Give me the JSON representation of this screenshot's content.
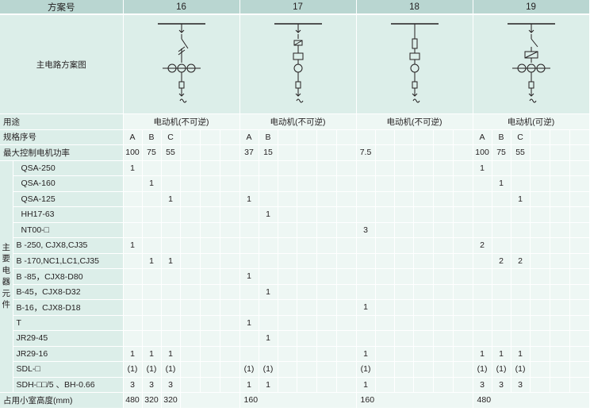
{
  "header": {
    "label": "方案号",
    "schemes": [
      "16",
      "17",
      "18",
      "19"
    ]
  },
  "diagram_row": {
    "label": "主电路方案图"
  },
  "purpose": {
    "label": "用途",
    "values": [
      "电动机(不可逆)",
      "电动机(不可逆)",
      "电动机(不可逆)",
      "电动机(可逆)"
    ]
  },
  "spec": {
    "label": "规格序号",
    "values": [
      "A",
      "B",
      "C",
      "",
      "",
      "",
      "A",
      "B",
      "",
      "",
      "",
      "",
      "",
      "",
      "",
      "",
      "",
      "",
      "A",
      "B",
      "C",
      "",
      "",
      ""
    ]
  },
  "power": {
    "label": "最大控制电机功率",
    "values": [
      "100",
      "75",
      "55",
      "",
      "",
      "",
      "37",
      "15",
      "",
      "",
      "",
      "",
      "7.5",
      "",
      "",
      "",
      "",
      "",
      "100",
      "75",
      "55",
      "",
      "",
      ""
    ]
  },
  "side_label": "主要电器元件",
  "components": [
    {
      "name": "QSA-250",
      "indent": true,
      "values": [
        "1",
        "",
        "",
        "",
        "",
        "",
        "",
        "",
        "",
        "",
        "",
        "",
        "",
        "",
        "",
        "",
        "",
        "",
        "1",
        "",
        "",
        "",
        "",
        ""
      ]
    },
    {
      "name": "QSA-160",
      "indent": true,
      "values": [
        "",
        "1",
        "",
        "",
        "",
        "",
        "",
        "",
        "",
        "",
        "",
        "",
        "",
        "",
        "",
        "",
        "",
        "",
        "",
        "1",
        "",
        "",
        "",
        ""
      ]
    },
    {
      "name": "QSA-125",
      "indent": true,
      "values": [
        "",
        "",
        "1",
        "",
        "",
        "",
        "1",
        "",
        "",
        "",
        "",
        "",
        "",
        "",
        "",
        "",
        "",
        "",
        "",
        "",
        "1",
        "",
        "",
        ""
      ]
    },
    {
      "name": "HH17-63",
      "indent": true,
      "values": [
        "",
        "",
        "",
        "",
        "",
        "",
        "",
        "1",
        "",
        "",
        "",
        "",
        "",
        "",
        "",
        "",
        "",
        "",
        "",
        "",
        "",
        "",
        "",
        ""
      ]
    },
    {
      "name": "NT00-□",
      "indent": true,
      "values": [
        "",
        "",
        "",
        "",
        "",
        "",
        "",
        "",
        "",
        "",
        "",
        "",
        "3",
        "",
        "",
        "",
        "",
        "",
        "",
        "",
        "",
        "",
        "",
        ""
      ]
    },
    {
      "name": "B -250, CJX8,CJ35",
      "indent": false,
      "values": [
        "1",
        "",
        "",
        "",
        "",
        "",
        "",
        "",
        "",
        "",
        "",
        "",
        "",
        "",
        "",
        "",
        "",
        "",
        "2",
        "",
        "",
        "",
        "",
        ""
      ]
    },
    {
      "name": "B -170,NC1,LC1,CJ35",
      "indent": false,
      "values": [
        "",
        "1",
        "1",
        "",
        "",
        "",
        "",
        "",
        "",
        "",
        "",
        "",
        "",
        "",
        "",
        "",
        "",
        "",
        "",
        "2",
        "2",
        "",
        "",
        ""
      ]
    },
    {
      "name": "B -85，CJX8-D80",
      "indent": false,
      "values": [
        "",
        "",
        "",
        "",
        "",
        "",
        "1",
        "",
        "",
        "",
        "",
        "",
        "",
        "",
        "",
        "",
        "",
        "",
        "",
        "",
        "",
        "",
        "",
        ""
      ]
    },
    {
      "name": "B-45，CJX8-D32",
      "indent": false,
      "values": [
        "",
        "",
        "",
        "",
        "",
        "",
        "",
        "1",
        "",
        "",
        "",
        "",
        "",
        "",
        "",
        "",
        "",
        "",
        "",
        "",
        "",
        "",
        "",
        ""
      ]
    },
    {
      "name": "B-16，CJX8-D18",
      "indent": false,
      "values": [
        "",
        "",
        "",
        "",
        "",
        "",
        "",
        "",
        "",
        "",
        "",
        "",
        "1",
        "",
        "",
        "",
        "",
        "",
        "",
        "",
        "",
        "",
        "",
        ""
      ]
    },
    {
      "name": "T",
      "indent": false,
      "values": [
        "",
        "",
        "",
        "",
        "",
        "",
        "1",
        "",
        "",
        "",
        "",
        "",
        "",
        "",
        "",
        "",
        "",
        "",
        "",
        "",
        "",
        "",
        "",
        ""
      ]
    },
    {
      "name": "JR29-45",
      "indent": false,
      "values": [
        "",
        "",
        "",
        "",
        "",
        "",
        "",
        "1",
        "",
        "",
        "",
        "",
        "",
        "",
        "",
        "",
        "",
        "",
        "",
        "",
        "",
        "",
        "",
        ""
      ]
    },
    {
      "name": "JR29-16",
      "indent": false,
      "values": [
        "1",
        "1",
        "1",
        "",
        "",
        "",
        "",
        "",
        "",
        "",
        "",
        "",
        "1",
        "",
        "",
        "",
        "",
        "",
        "1",
        "1",
        "1",
        "",
        "",
        ""
      ]
    },
    {
      "name": "SDL-□",
      "indent": false,
      "values": [
        "(1)",
        "(1)",
        "(1)",
        "",
        "",
        "",
        "(1)",
        "(1)",
        "",
        "",
        "",
        "",
        "(1)",
        "",
        "",
        "",
        "",
        "",
        "(1)",
        "(1)",
        "(1)",
        "",
        "",
        ""
      ]
    },
    {
      "name": "SDH-□□/5 、BH-0.66",
      "indent": false,
      "values": [
        "3",
        "3",
        "3",
        "",
        "",
        "",
        "1",
        "1",
        "",
        "",
        "",
        "",
        "1",
        "",
        "",
        "",
        "",
        "",
        "3",
        "3",
        "3",
        "",
        "",
        ""
      ]
    }
  ],
  "height": {
    "label": "占用小室高度(mm)",
    "values": [
      "480",
      "320",
      "320",
      "160",
      "160",
      "480"
    ]
  }
}
